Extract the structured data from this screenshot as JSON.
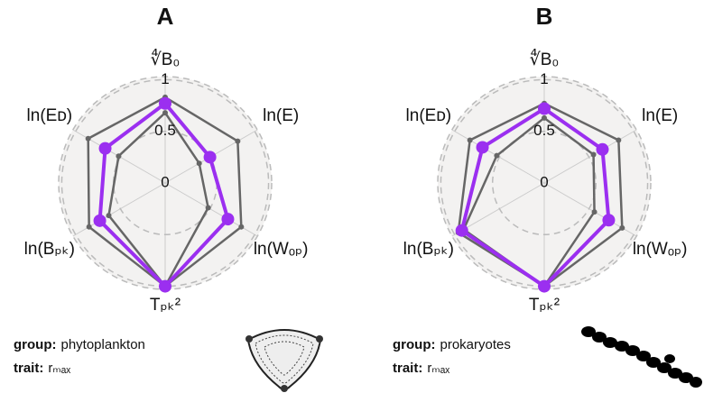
{
  "chart_data": [
    {
      "type": "radar",
      "title": "A",
      "categories": [
        "∜B₀",
        "ln(E)",
        "ln(Wₒₚ)",
        "Tₚₖ²",
        "ln(Bₚₖ)",
        "ln(Eᴅ)"
      ],
      "rlim": [
        0,
        1.03
      ],
      "rticks": [
        0,
        0.5,
        1
      ],
      "grid": true,
      "series": [
        {
          "color": "#666666",
          "values": [
            0.83,
            0.81,
            0.85,
            1.0,
            0.85,
            0.86
          ]
        },
        {
          "color": "#666666",
          "values": [
            0.68,
            0.38,
            0.48,
            1.0,
            0.63,
            0.52
          ]
        },
        {
          "color": "#9b2ff0",
          "values": [
            0.77,
            0.5,
            0.7,
            1.0,
            0.73,
            0.67
          ]
        }
      ],
      "group_label": "group:",
      "group": "phytoplankton",
      "trait_label": "trait:",
      "trait": "rₘₐₓ"
    },
    {
      "type": "radar",
      "title": "B",
      "categories": [
        "∜B₀",
        "ln(E)",
        "ln(Wₒₚ)",
        "Tₚₖ²",
        "ln(Bₚₖ)",
        "ln(Eᴅ)"
      ],
      "rlim": [
        0,
        1.03
      ],
      "rticks": [
        0,
        0.5,
        1
      ],
      "grid": true,
      "series": [
        {
          "color": "#666666",
          "values": [
            0.77,
            0.83,
            0.87,
            1.0,
            0.96,
            0.83
          ]
        },
        {
          "color": "#666666",
          "values": [
            0.63,
            0.55,
            0.56,
            1.0,
            0.9,
            0.53
          ]
        },
        {
          "color": "#9b2ff0",
          "values": [
            0.72,
            0.65,
            0.72,
            1.0,
            0.92,
            0.69
          ]
        }
      ],
      "group_label": "group:",
      "group": "prokaryotes",
      "trait_label": "trait:",
      "trait": "rₘₐₓ"
    }
  ]
}
